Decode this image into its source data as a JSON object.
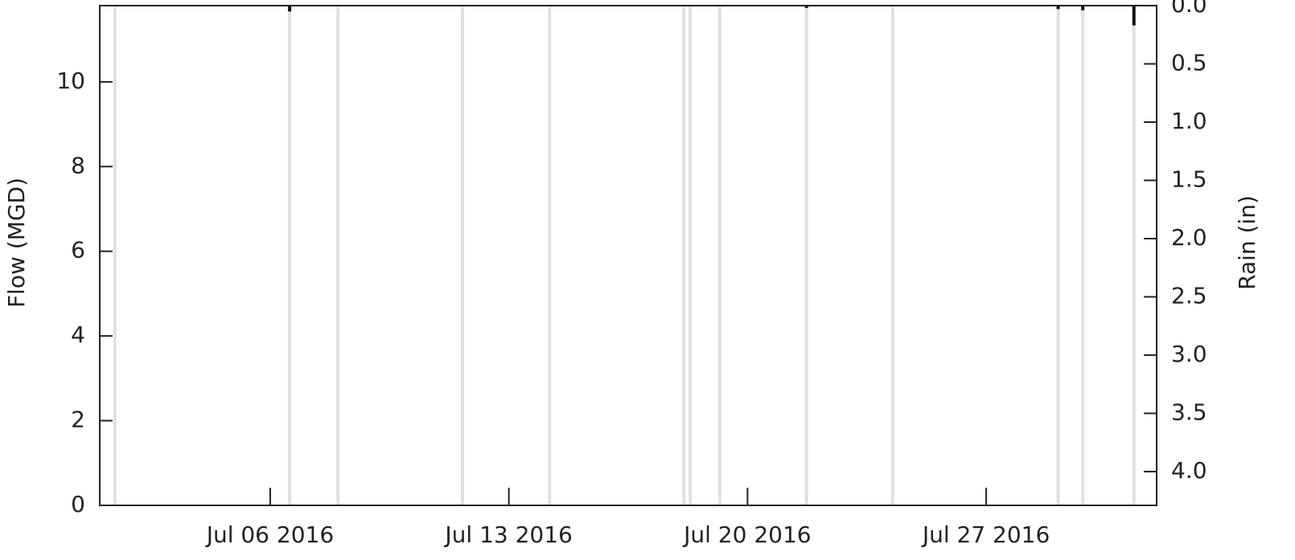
{
  "chart_data": {
    "type": "rain_flow",
    "ylabel": "Flow (MGD)",
    "y2label": "Rain (in)",
    "xlim": [
      "2016-07-01T00:00",
      "2016-08-01T00:00"
    ],
    "xticks": [
      {
        "value": "2016-07-06T00:00",
        "label": "Jul 06 2016"
      },
      {
        "value": "2016-07-13T00:00",
        "label": "Jul 13 2016"
      },
      {
        "value": "2016-07-20T00:00",
        "label": "Jul 20 2016"
      },
      {
        "value": "2016-07-27T00:00",
        "label": "Jul 27 2016"
      }
    ],
    "ylim": [
      0,
      11.8
    ],
    "yticks": [
      0,
      2,
      4,
      6,
      8,
      10
    ],
    "y2lim": [
      0,
      4.29
    ],
    "y2_inverted": true,
    "y2ticks": [
      {
        "value": 0,
        "label": "0.0"
      },
      0.5,
      {
        "value": 1,
        "label": "1.0"
      },
      1.5,
      {
        "value": 2,
        "label": "2.0"
      },
      2.5,
      {
        "value": 3,
        "label": "3.0"
      },
      3.5,
      {
        "value": 4,
        "label": "4.0"
      }
    ],
    "rain": {
      "color": "#111111",
      "axis": "y2",
      "x": [
        "2016-07-06T13:40",
        "2016-07-21T17:30",
        "2016-07-29T02:40",
        "2016-07-29T20:00",
        "2016-07-31T08:00"
      ],
      "values": [
        0.05,
        0.02,
        0.03,
        0.04,
        0.17
      ]
    },
    "markers": {
      "color": "#d9d9d9",
      "x": [
        "2016-07-01T10:40",
        "2016-07-06T13:40",
        "2016-07-07T23:40",
        "2016-07-11T15:20",
        "2016-07-14T04:40",
        "2016-07-18T03:10",
        "2016-07-18T07:40",
        "2016-07-19T04:30",
        "2016-07-21T17:30",
        "2016-07-24T06:10",
        "2016-07-29T02:40",
        "2016-07-29T20:00",
        "2016-07-31T08:00"
      ]
    }
  }
}
